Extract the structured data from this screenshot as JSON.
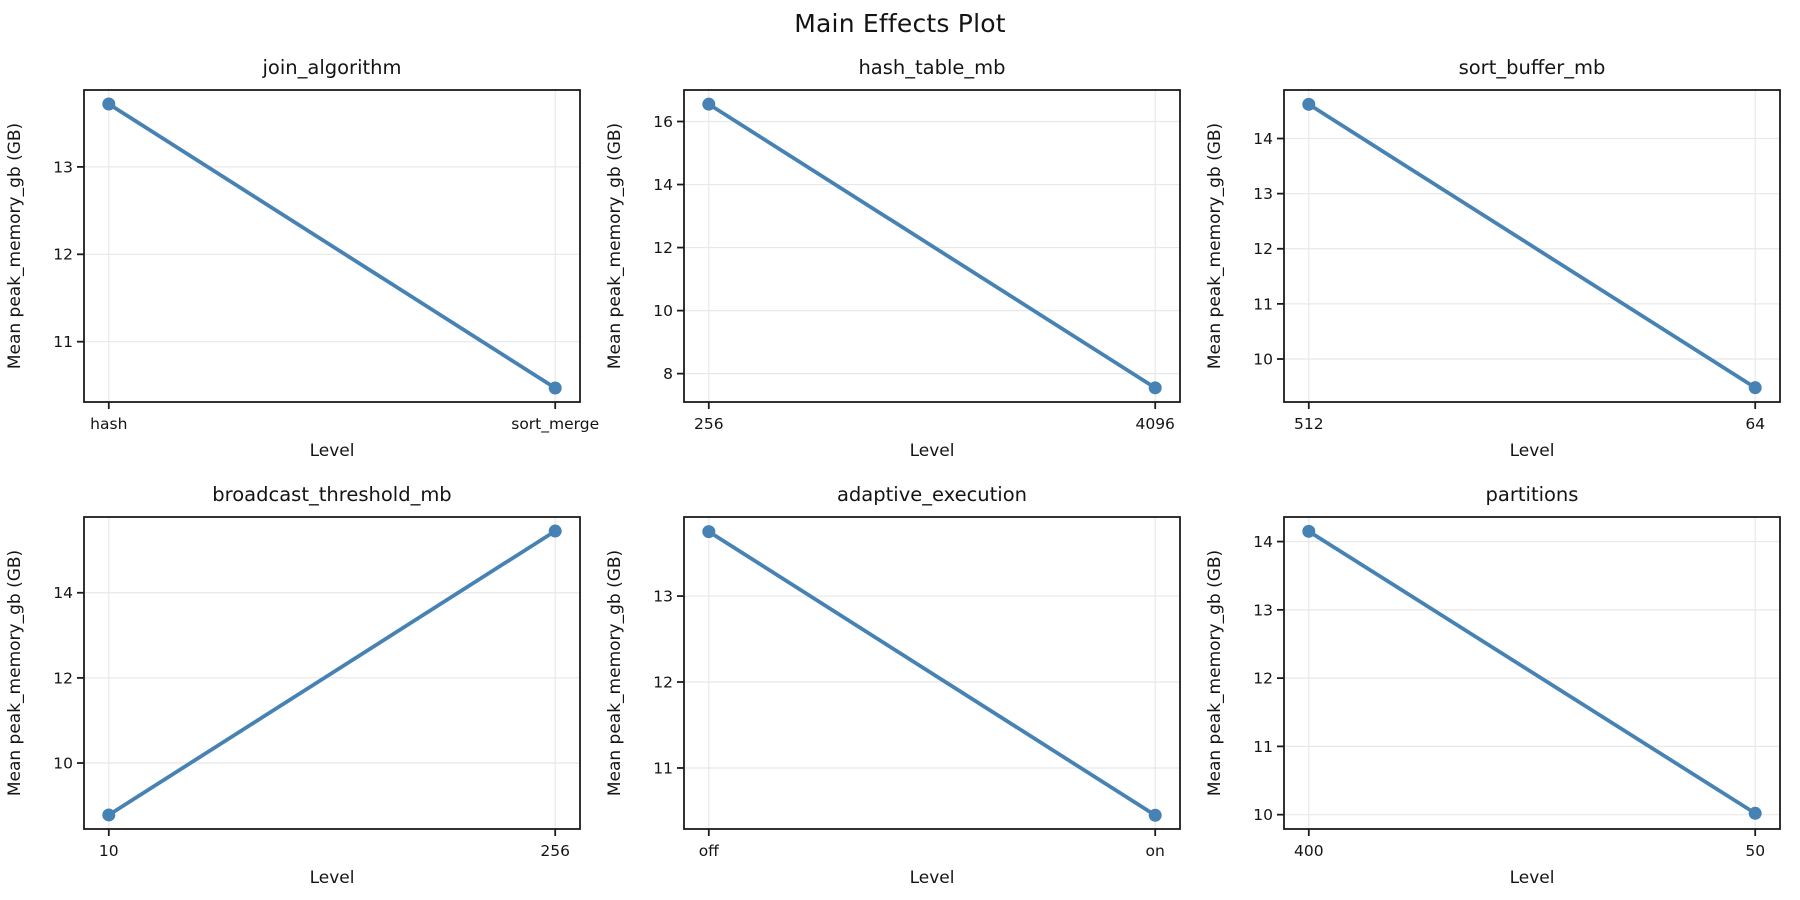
{
  "figure": {
    "suptitle": "Main Effects Plot",
    "layout": {
      "rows": 2,
      "cols": 3
    },
    "accent_color": "#4682b4",
    "grid_color": "#e8e8e8",
    "spine_color": "#1c1c1c",
    "text_color": "#141414"
  },
  "chart_data": [
    {
      "type": "line",
      "title": "join_algorithm",
      "categories": [
        "hash",
        "sort_merge"
      ],
      "values": [
        13.72,
        10.47
      ],
      "xlabel": "Level",
      "ylabel": "Mean peak_memory_gb (GB)",
      "yticks": [
        11,
        12,
        13
      ],
      "ylim": [
        10.31,
        13.88
      ],
      "grid": true,
      "legend": false
    },
    {
      "type": "line",
      "title": "hash_table_mb",
      "categories": [
        "256",
        "4096"
      ],
      "values": [
        16.55,
        7.55
      ],
      "xlabel": "Level",
      "ylabel": "Mean peak_memory_gb (GB)",
      "yticks": [
        8,
        10,
        12,
        14,
        16
      ],
      "ylim": [
        7.1,
        17.0
      ],
      "grid": true,
      "legend": false
    },
    {
      "type": "line",
      "title": "sort_buffer_mb",
      "categories": [
        "512",
        "64"
      ],
      "values": [
        14.62,
        9.48
      ],
      "xlabel": "Level",
      "ylabel": "Mean peak_memory_gb (GB)",
      "yticks": [
        10,
        11,
        12,
        13,
        14
      ],
      "ylim": [
        9.22,
        14.88
      ],
      "grid": true,
      "legend": false
    },
    {
      "type": "line",
      "title": "broadcast_threshold_mb",
      "categories": [
        "10",
        "256"
      ],
      "values": [
        8.78,
        15.45
      ],
      "xlabel": "Level",
      "ylabel": "Mean peak_memory_gb (GB)",
      "yticks": [
        10,
        12,
        14
      ],
      "ylim": [
        8.45,
        15.78
      ],
      "grid": true,
      "legend": false
    },
    {
      "type": "line",
      "title": "adaptive_execution",
      "categories": [
        "off",
        "on"
      ],
      "values": [
        13.75,
        10.45
      ],
      "xlabel": "Level",
      "ylabel": "Mean peak_memory_gb (GB)",
      "yticks": [
        11,
        12,
        13
      ],
      "ylim": [
        10.29,
        13.92
      ],
      "grid": true,
      "legend": false
    },
    {
      "type": "line",
      "title": "partitions",
      "categories": [
        "400",
        "50"
      ],
      "values": [
        14.15,
        10.02
      ],
      "xlabel": "Level",
      "ylabel": "Mean peak_memory_gb (GB)",
      "yticks": [
        10,
        11,
        12,
        13,
        14
      ],
      "ylim": [
        9.79,
        14.36
      ],
      "grid": true,
      "legend": false
    }
  ]
}
